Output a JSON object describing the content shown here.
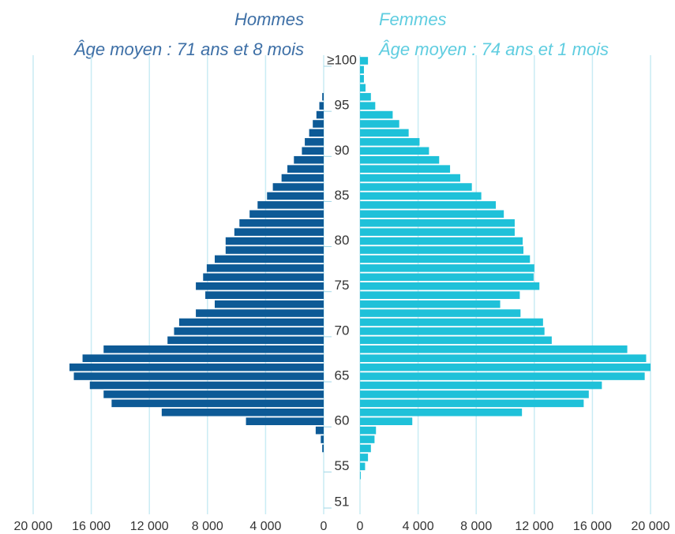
{
  "chart_data": {
    "type": "bar",
    "orientation": "horizontal",
    "categories": [
      "51",
      null,
      null,
      null,
      "55",
      null,
      null,
      null,
      null,
      "60",
      null,
      null,
      null,
      null,
      "65",
      null,
      null,
      null,
      null,
      "70",
      null,
      null,
      null,
      null,
      "75",
      null,
      null,
      null,
      null,
      "80",
      null,
      null,
      null,
      null,
      "85",
      null,
      null,
      null,
      null,
      "90",
      null,
      null,
      null,
      null,
      "95",
      null,
      null,
      null,
      null,
      "≥100"
    ],
    "series": [
      {
        "name": "Hommes",
        "subtitle": "Âge moyen : 71 ans et 8 mois",
        "color": "#0d5a96",
        "values": [
          0,
          0,
          0,
          0,
          0,
          0,
          100,
          200,
          550,
          5350,
          11150,
          14600,
          15150,
          16100,
          17200,
          17500,
          16600,
          15150,
          10750,
          10300,
          9950,
          8800,
          7500,
          8150,
          8800,
          8300,
          8050,
          7500,
          6750,
          6750,
          6150,
          5800,
          5100,
          4550,
          3900,
          3500,
          2900,
          2500,
          2050,
          1500,
          1300,
          1000,
          750,
          500,
          300,
          100,
          0,
          0,
          0,
          0
        ],
        "xlim": [
          0,
          20000
        ],
        "xticks": [
          {
            "value": 20000,
            "label": "20 000"
          },
          {
            "value": 16000,
            "label": "16 000"
          },
          {
            "value": 12000,
            "label": "12 000"
          },
          {
            "value": 8000,
            "label": "8 000"
          },
          {
            "value": 4000,
            "label": "4 000"
          },
          0
        ]
      },
      {
        "name": "Femmes",
        "subtitle": "Âge moyen : 74 ans et 1 mois",
        "color": "#1fc1d9",
        "values": [
          0,
          0,
          0,
          50,
          350,
          550,
          750,
          1000,
          1100,
          3600,
          11150,
          15400,
          15750,
          16650,
          19600,
          20000,
          19700,
          18400,
          13200,
          12700,
          12600,
          11050,
          9650,
          11000,
          12350,
          11950,
          12000,
          11700,
          11250,
          11200,
          10650,
          10650,
          9900,
          9350,
          8350,
          7700,
          6900,
          6200,
          5450,
          4750,
          4100,
          3350,
          2700,
          2250,
          1050,
          750,
          380,
          270,
          270,
          550
        ],
        "xlim": [
          0,
          20000
        ],
        "xticks": [
          0,
          {
            "value": 4000,
            "label": "4 000"
          },
          {
            "value": 8000,
            "label": "8 000"
          },
          {
            "value": 12000,
            "label": "12 000"
          },
          {
            "value": 16000,
            "label": "16 000"
          },
          {
            "value": 20000,
            "label": "20 000"
          }
        ]
      }
    ],
    "grid": true
  }
}
